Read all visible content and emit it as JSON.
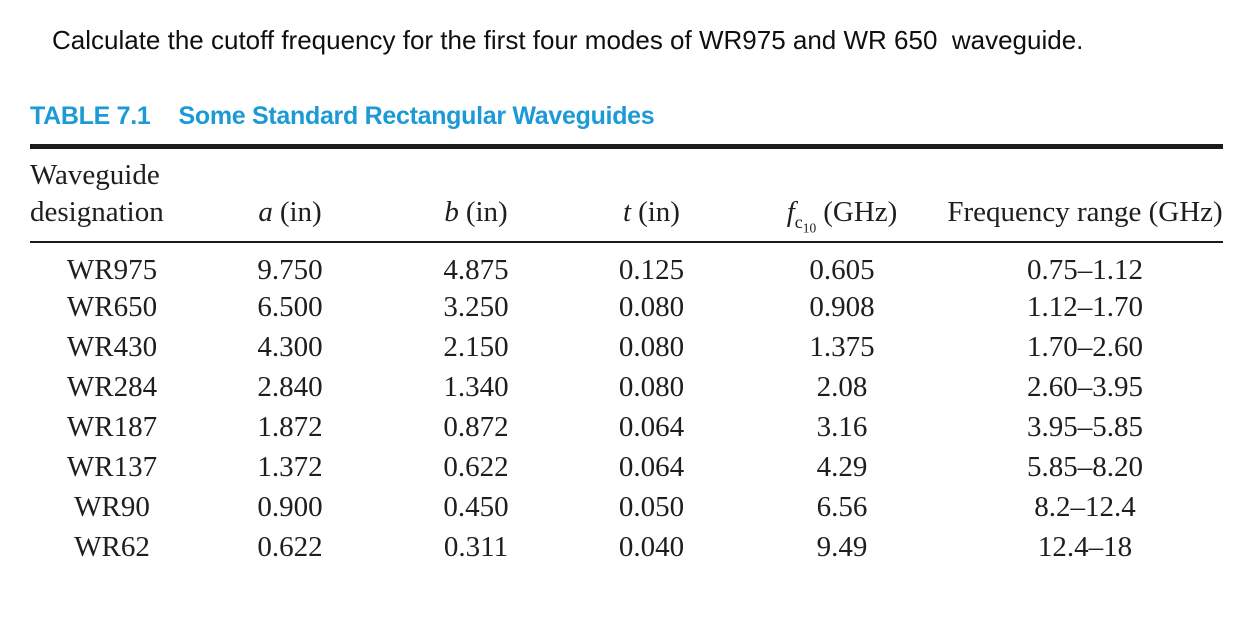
{
  "question": "Calculate the cutoff frequency for the first four modes of WR975 and WR 650  waveguide.",
  "table": {
    "label": "TABLE 7.1",
    "title": "Some Standard Rectangular Waveguides",
    "accent_color": "#1C9AD6",
    "columns": [
      {
        "id": "designation",
        "label_line1": "Waveguide",
        "label_line2": "designation"
      },
      {
        "id": "a",
        "symbol": "a",
        "unit": "(in)"
      },
      {
        "id": "b",
        "symbol": "b",
        "unit": "(in)"
      },
      {
        "id": "t",
        "symbol": "t",
        "unit": "(in)"
      },
      {
        "id": "fc10",
        "symbol": "f",
        "sub": "c",
        "subsub": "10",
        "unit": "(GHz)"
      },
      {
        "id": "frequency_range",
        "label": "Frequency range (GHz)"
      }
    ],
    "rows": [
      [
        "WR975",
        "9.750",
        "4.875",
        "0.125",
        "0.605",
        "0.75–1.12"
      ],
      [
        "WR650",
        "6.500",
        "3.250",
        "0.080",
        "0.908",
        "1.12–1.70"
      ],
      [
        "WR430",
        "4.300",
        "2.150",
        "0.080",
        "1.375",
        "1.70–2.60"
      ],
      [
        "WR284",
        "2.840",
        "1.340",
        "0.080",
        "2.08",
        "2.60–3.95"
      ],
      [
        "WR187",
        "1.872",
        "0.872",
        "0.064",
        "3.16",
        "3.95–5.85"
      ],
      [
        "WR137",
        "1.372",
        "0.622",
        "0.064",
        "4.29",
        "5.85–8.20"
      ],
      [
        "WR90",
        "0.900",
        "0.450",
        "0.050",
        "6.56",
        "8.2–12.4"
      ],
      [
        "WR62",
        "0.622",
        "0.311",
        "0.040",
        "9.49",
        "12.4–18"
      ]
    ]
  }
}
